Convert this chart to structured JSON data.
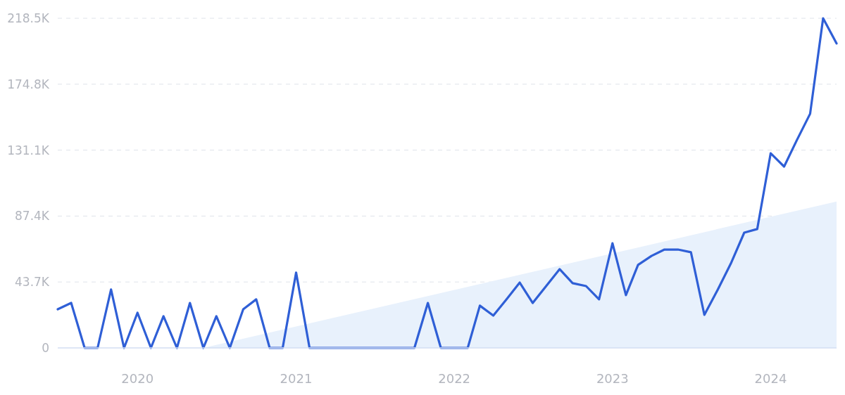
{
  "chart_data": {
    "type": "line",
    "x": [
      "2019-07",
      "2019-08",
      "2019-09",
      "2019-10",
      "2019-11",
      "2019-12",
      "2020-01",
      "2020-02",
      "2020-03",
      "2020-04",
      "2020-05",
      "2020-06",
      "2020-07",
      "2020-08",
      "2020-09",
      "2020-10",
      "2020-11",
      "2020-12",
      "2021-01",
      "2021-02",
      "2021-03",
      "2021-04",
      "2021-05",
      "2021-06",
      "2021-07",
      "2021-08",
      "2021-09",
      "2021-10",
      "2021-11",
      "2021-12",
      "2022-01",
      "2022-02",
      "2022-03",
      "2022-04",
      "2022-05",
      "2022-06",
      "2022-07",
      "2022-08",
      "2022-09",
      "2022-10",
      "2022-11",
      "2022-12",
      "2023-01",
      "2023-02",
      "2023-03",
      "2023-04",
      "2023-05",
      "2023-06",
      "2023-07",
      "2023-08",
      "2023-09",
      "2023-10",
      "2023-11",
      "2023-12",
      "2024-01",
      "2024-02",
      "2024-03",
      "2024-04",
      "2024-05",
      "2024-06"
    ],
    "series": [
      {
        "type": "area",
        "color": "#e8f1fc",
        "x": [
          "2020-06",
          "2024-06"
        ],
        "values": [
          0,
          97
        ]
      },
      {
        "color": "#2f5fd6",
        "values": [
          25.6,
          29.8,
          0,
          0,
          38.7,
          0,
          23.3,
          0,
          21,
          0,
          29.8,
          0,
          21,
          0,
          25.6,
          32.2,
          0,
          0,
          49.9,
          0,
          0,
          0,
          0,
          0,
          0,
          0,
          0,
          0,
          29.8,
          0,
          0,
          0,
          28,
          21.4,
          32,
          43.3,
          29.8,
          41,
          52.2,
          42.9,
          41,
          32.2,
          69.4,
          35,
          55,
          61,
          65.2,
          65.2,
          63.4,
          21.9,
          38.7,
          55.9,
          76.4,
          78.8,
          129,
          120.2,
          137.5,
          155.2,
          218.5,
          201.8
        ]
      }
    ],
    "xlim": [
      "2019-07",
      "2024-06"
    ],
    "xticks": [
      {
        "value": "2020-01",
        "label": "2020"
      },
      {
        "value": "2021-01",
        "label": "2021"
      },
      {
        "value": "2022-01",
        "label": "2022"
      },
      {
        "value": "2023-01",
        "label": "2023"
      },
      {
        "value": "2024-01",
        "label": "2024"
      }
    ],
    "ylim": [
      0,
      218.5
    ],
    "yticks": [
      {
        "value": 0,
        "label": "0"
      },
      {
        "value": 43.7,
        "label": "43.7K"
      },
      {
        "value": 87.4,
        "label": "87.4K"
      },
      {
        "value": 131.1,
        "label": "131.1K"
      },
      {
        "value": 174.8,
        "label": "174.8K"
      },
      {
        "value": 218.5,
        "label": "218.5K"
      }
    ],
    "grid": "y",
    "marker": "none",
    "line_style": "solid"
  }
}
